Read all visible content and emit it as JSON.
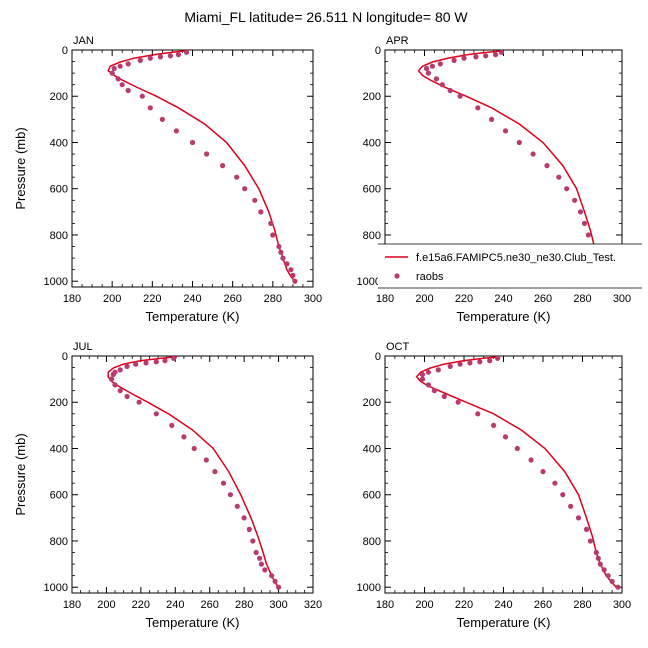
{
  "title": "Miami_FL  latitude= 26.511 N longitude= 80 W",
  "colors": {
    "model": "#e0001a",
    "obs": "#b83a6e"
  },
  "legend": {
    "model_label": "f.e15a6.FAMIPC5.ne30_ne30.Club_Test.",
    "obs_label": "raobs",
    "placement": "lower-right of APR panel"
  },
  "chart_data": [
    {
      "type": "line",
      "panel": "JAN",
      "xlabel": "Temperature (K)",
      "ylabel": "Pressure (mb)",
      "xlim": [
        180,
        300
      ],
      "ylim": [
        0,
        1025
      ],
      "y_inverted": true,
      "xticks": [
        180,
        200,
        220,
        240,
        260,
        280,
        300
      ],
      "yticks": [
        0,
        200,
        400,
        600,
        800,
        1000
      ],
      "series": [
        {
          "name": "f.e15a6.FAMIPC5.ne30_ne30.Club_Test.",
          "kind": "line",
          "x": [
            237,
            230,
            221,
            211,
            204,
            199,
            198,
            201,
            205,
            212,
            222,
            233,
            246,
            257,
            266,
            273,
            278,
            281,
            283,
            285,
            287,
            289,
            291
          ],
          "y": [
            3,
            10,
            20,
            35,
            52,
            70,
            90,
            110,
            130,
            160,
            200,
            250,
            320,
            400,
            500,
            600,
            700,
            780,
            850,
            900,
            950,
            980,
            1000
          ]
        },
        {
          "name": "raobs",
          "kind": "scatter",
          "x": [
            237,
            233,
            229,
            224,
            219,
            214,
            208,
            204,
            201,
            200,
            203,
            205,
            208,
            215,
            219,
            225,
            232,
            240,
            247,
            255,
            262,
            266,
            271,
            274,
            279,
            280,
            283,
            284,
            285,
            287,
            289,
            290,
            291
          ],
          "y": [
            10,
            20,
            25,
            30,
            35,
            45,
            60,
            70,
            80,
            100,
            125,
            150,
            175,
            200,
            250,
            300,
            350,
            400,
            450,
            500,
            550,
            600,
            650,
            700,
            750,
            800,
            850,
            875,
            900,
            925,
            950,
            975,
            1000
          ]
        }
      ]
    },
    {
      "type": "line",
      "panel": "APR",
      "xlabel": "Temperature (K)",
      "ylabel": "",
      "xlim": [
        180,
        300
      ],
      "ylim": [
        0,
        1025
      ],
      "y_inverted": true,
      "xticks": [
        180,
        200,
        220,
        240,
        260,
        280,
        300
      ],
      "yticks": [
        0,
        200,
        400,
        600,
        800,
        1000
      ],
      "series": [
        {
          "name": "f.e15a6.FAMIPC5.ne30_ne30.Club_Test.",
          "kind": "line",
          "x": [
            240,
            232,
            222,
            212,
            204,
            199,
            197,
            199,
            203,
            210,
            221,
            234,
            248,
            260,
            270,
            277,
            281,
            284,
            286,
            288,
            291,
            293,
            295
          ],
          "y": [
            3,
            10,
            20,
            35,
            52,
            70,
            90,
            110,
            130,
            160,
            200,
            250,
            320,
            400,
            500,
            600,
            700,
            780,
            850,
            900,
            950,
            980,
            1000
          ]
        },
        {
          "name": "raobs",
          "kind": "scatter",
          "x": [
            239,
            236,
            231,
            226,
            220,
            215,
            208,
            204,
            201,
            202,
            206,
            209,
            213,
            218,
            227,
            234,
            241,
            248,
            255,
            262,
            268,
            272,
            276,
            279,
            281,
            283,
            285,
            286,
            288,
            290,
            292,
            294,
            296
          ],
          "y": [
            10,
            20,
            25,
            30,
            35,
            45,
            60,
            70,
            80,
            100,
            125,
            150,
            175,
            200,
            250,
            300,
            350,
            400,
            450,
            500,
            550,
            600,
            650,
            700,
            750,
            800,
            850,
            875,
            900,
            925,
            950,
            975,
            1000
          ]
        }
      ]
    },
    {
      "type": "line",
      "panel": "JUL",
      "xlabel": "Temperature (K)",
      "ylabel": "Pressure (mb)",
      "xlim": [
        180,
        320
      ],
      "ylim": [
        0,
        1025
      ],
      "y_inverted": true,
      "xticks": [
        180,
        200,
        220,
        240,
        260,
        280,
        300,
        320
      ],
      "yticks": [
        0,
        200,
        400,
        600,
        800,
        1000
      ],
      "series": [
        {
          "name": "f.e15a6.FAMIPC5.ne30_ne30.Club_Test.",
          "kind": "line",
          "x": [
            241,
            232,
            220,
            210,
            204,
            201,
            201,
            203,
            207,
            214,
            224,
            236,
            250,
            262,
            271,
            278,
            284,
            288,
            291,
            293,
            296,
            298,
            300
          ],
          "y": [
            3,
            10,
            20,
            35,
            52,
            70,
            90,
            110,
            130,
            160,
            200,
            250,
            320,
            400,
            500,
            600,
            700,
            780,
            850,
            900,
            950,
            980,
            1000
          ]
        },
        {
          "name": "raobs",
          "kind": "scatter",
          "x": [
            239,
            234,
            229,
            223,
            217,
            212,
            208,
            205,
            204,
            203,
            205,
            208,
            212,
            219,
            229,
            238,
            245,
            251,
            258,
            263,
            268,
            272,
            276,
            280,
            283,
            285,
            287,
            289,
            290,
            292,
            296,
            298,
            300
          ],
          "y": [
            10,
            20,
            25,
            30,
            35,
            45,
            60,
            70,
            80,
            100,
            125,
            150,
            175,
            200,
            250,
            300,
            350,
            400,
            450,
            500,
            550,
            600,
            650,
            700,
            750,
            800,
            850,
            875,
            900,
            925,
            950,
            975,
            1000
          ]
        }
      ]
    },
    {
      "type": "line",
      "panel": "OCT",
      "xlabel": "Temperature (K)",
      "ylabel": "",
      "xlim": [
        180,
        300
      ],
      "ylim": [
        0,
        1025
      ],
      "y_inverted": true,
      "xticks": [
        180,
        200,
        220,
        240,
        260,
        280,
        300
      ],
      "yticks": [
        0,
        200,
        400,
        600,
        800,
        1000
      ],
      "series": [
        {
          "name": "f.e15a6.FAMIPC5.ne30_ne30.Club_Test.",
          "kind": "line",
          "x": [
            238,
            230,
            220,
            210,
            203,
            198,
            196,
            198,
            202,
            210,
            221,
            235,
            249,
            261,
            271,
            278,
            282,
            285,
            287,
            289,
            292,
            295,
            297
          ],
          "y": [
            3,
            10,
            20,
            35,
            52,
            70,
            90,
            110,
            130,
            160,
            200,
            250,
            320,
            400,
            500,
            600,
            700,
            780,
            850,
            900,
            950,
            980,
            1000
          ]
        },
        {
          "name": "raobs",
          "kind": "scatter",
          "x": [
            237,
            233,
            228,
            223,
            218,
            213,
            207,
            202,
            199,
            199,
            202,
            205,
            210,
            217,
            227,
            235,
            241,
            247,
            254,
            260,
            266,
            270,
            274,
            278,
            282,
            284,
            287,
            288,
            289,
            291,
            293,
            295,
            298
          ],
          "y": [
            10,
            20,
            25,
            30,
            35,
            45,
            60,
            70,
            80,
            100,
            125,
            150,
            175,
            200,
            250,
            300,
            350,
            400,
            450,
            500,
            550,
            600,
            650,
            700,
            750,
            800,
            850,
            875,
            900,
            925,
            950,
            975,
            1000
          ]
        }
      ]
    }
  ]
}
